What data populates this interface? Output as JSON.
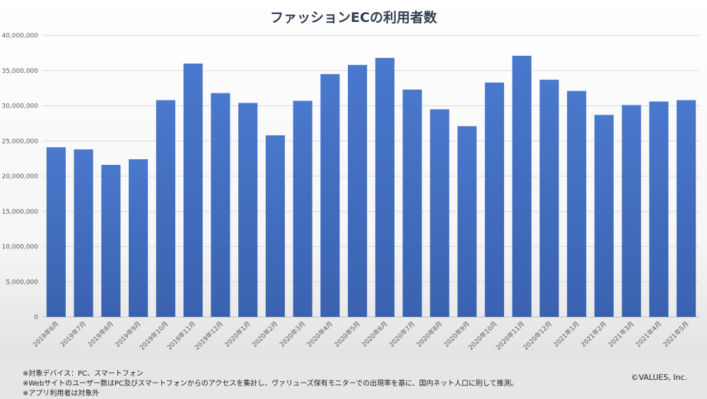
{
  "chart_data": {
    "type": "bar",
    "title": "ファッションECの利用者数",
    "xlabel": "",
    "ylabel": "",
    "ylim": [
      0,
      40000000
    ],
    "yticks": [
      0,
      5000000,
      10000000,
      15000000,
      20000000,
      25000000,
      30000000,
      35000000,
      40000000
    ],
    "ytick_labels": [
      "0",
      "5,000,000",
      "10,000,000",
      "15,000,000",
      "20,000,000",
      "25,000,000",
      "30,000,000",
      "35,000,000",
      "40,000,000"
    ],
    "categories": [
      "2019年6月",
      "2019年7月",
      "2019年8月",
      "2019年9月",
      "2019年10月",
      "2019年11月",
      "2019年12月",
      "2020年1月",
      "2020年2月",
      "2020年3月",
      "2020年4月",
      "2020年5月",
      "2020年6月",
      "2020年7月",
      "2020年8月",
      "2020年9月",
      "2020年10月",
      "2020年11月",
      "2020年12月",
      "2021年1月",
      "2021年2月",
      "2021年3月",
      "2021年4月",
      "2021年5月"
    ],
    "values": [
      24100000,
      23800000,
      21600000,
      22400000,
      30800000,
      36000000,
      31800000,
      30400000,
      25800000,
      30700000,
      34500000,
      35800000,
      36800000,
      32300000,
      29500000,
      27100000,
      33300000,
      37100000,
      33700000,
      32100000,
      28700000,
      30100000,
      30600000,
      30800000
    ],
    "grid": true,
    "bar_color": "#4472c4"
  },
  "notes": [
    "※対象デバイス：PC、スマートフォン",
    "※Webサイトのユーザー数はPC及びスマートフォンからのアクセスを集計し、ヴァリューズ保有モニターでの出現率を基に、国内ネット人口に則して推測。",
    "※アプリ利用者は対象外"
  ],
  "copyright": "©VALUES, Inc."
}
